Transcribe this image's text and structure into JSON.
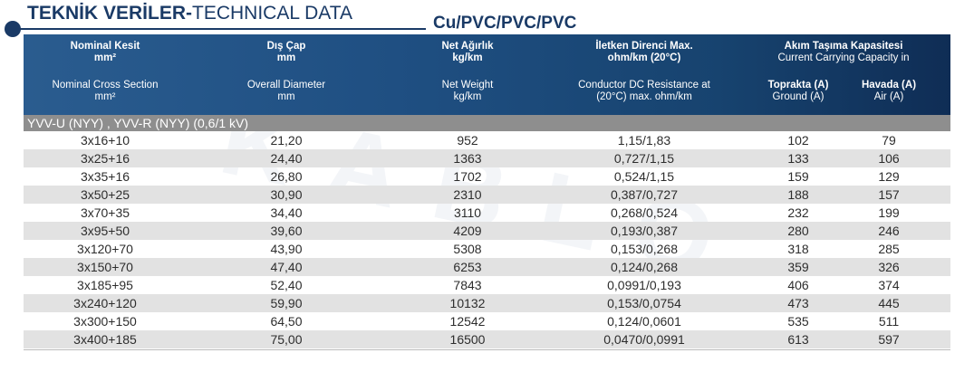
{
  "header": {
    "title_bold": "TEKNİK VERİLER-",
    "title_light": "TECHNICAL DATA",
    "cable_type": "Cu/PVC/PVC/PVC"
  },
  "columns": {
    "nominal_tr": "Nominal Kesit",
    "nominal_tr_unit": "mm²",
    "nominal_en": "Nominal Cross Section",
    "nominal_en_unit": "mm²",
    "diameter_tr": "Dış Çap",
    "diameter_tr_unit": "mm",
    "diameter_en": "Overall Diameter",
    "diameter_en_unit": "mm",
    "weight_tr": "Net Ağırlık",
    "weight_tr_unit": "kg/km",
    "weight_en": "Net Weight",
    "weight_en_unit": "kg/km",
    "resistance_tr": "İletken Direnci Max.",
    "resistance_tr_unit": "ohm/km (20°C)",
    "resistance_en": "Conductor DC Resistance at",
    "resistance_en_unit": "(20°C) max. ohm/km",
    "capacity_tr": "Akım Taşıma Kapasitesi",
    "capacity_en": "Current Carrying Capacity in",
    "ground_tr": "Toprakta (A)",
    "ground_en": "Ground (A)",
    "air_tr": "Havada (A)",
    "air_en": "Air (A)"
  },
  "section_label": "YVV-U (NYY) , YVV-R (NYY) (0,6/1 kV)",
  "rows": [
    {
      "section": "3x16+10",
      "diameter": "21,20",
      "weight": "952",
      "resistance": "1,15/1,83",
      "ground": "102",
      "air": "79"
    },
    {
      "section": "3x25+16",
      "diameter": "24,40",
      "weight": "1363",
      "resistance": "0,727/1,15",
      "ground": "133",
      "air": "106"
    },
    {
      "section": "3x35+16",
      "diameter": "26,80",
      "weight": "1702",
      "resistance": "0,524/1,15",
      "ground": "159",
      "air": "129"
    },
    {
      "section": "3x50+25",
      "diameter": "30,90",
      "weight": "2310",
      "resistance": "0,387/0,727",
      "ground": "188",
      "air": "157"
    },
    {
      "section": "3x70+35",
      "diameter": "34,40",
      "weight": "3110",
      "resistance": "0,268/0,524",
      "ground": "232",
      "air": "199"
    },
    {
      "section": "3x95+50",
      "diameter": "39,60",
      "weight": "4209",
      "resistance": "0,193/0,387",
      "ground": "280",
      "air": "246"
    },
    {
      "section": "3x120+70",
      "diameter": "43,90",
      "weight": "5308",
      "resistance": "0,153/0,268",
      "ground": "318",
      "air": "285"
    },
    {
      "section": "3x150+70",
      "diameter": "47,40",
      "weight": "6253",
      "resistance": "0,124/0,268",
      "ground": "359",
      "air": "326"
    },
    {
      "section": "3x185+95",
      "diameter": "52,40",
      "weight": "7843",
      "resistance": "0,0991/0,193",
      "ground": "406",
      "air": "374"
    },
    {
      "section": "3x240+120",
      "diameter": "59,90",
      "weight": "10132",
      "resistance": "0,153/0,0754",
      "ground": "473",
      "air": "445"
    },
    {
      "section": "3x300+150",
      "diameter": "64,50",
      "weight": "12542",
      "resistance": "0,124/0,0601",
      "ground": "535",
      "air": "511"
    },
    {
      "section": "3x400+185",
      "diameter": "75,00",
      "weight": "16500",
      "resistance": "0,0470/0,0991",
      "ground": "613",
      "air": "597"
    }
  ],
  "colors": {
    "brand_navy": "#1a3a66",
    "header_gradient_start": "#2a5c8f",
    "header_gradient_end": "#0f2d55",
    "section_gray": "#8e8e8e",
    "row_alt": "#e2e2e2"
  }
}
